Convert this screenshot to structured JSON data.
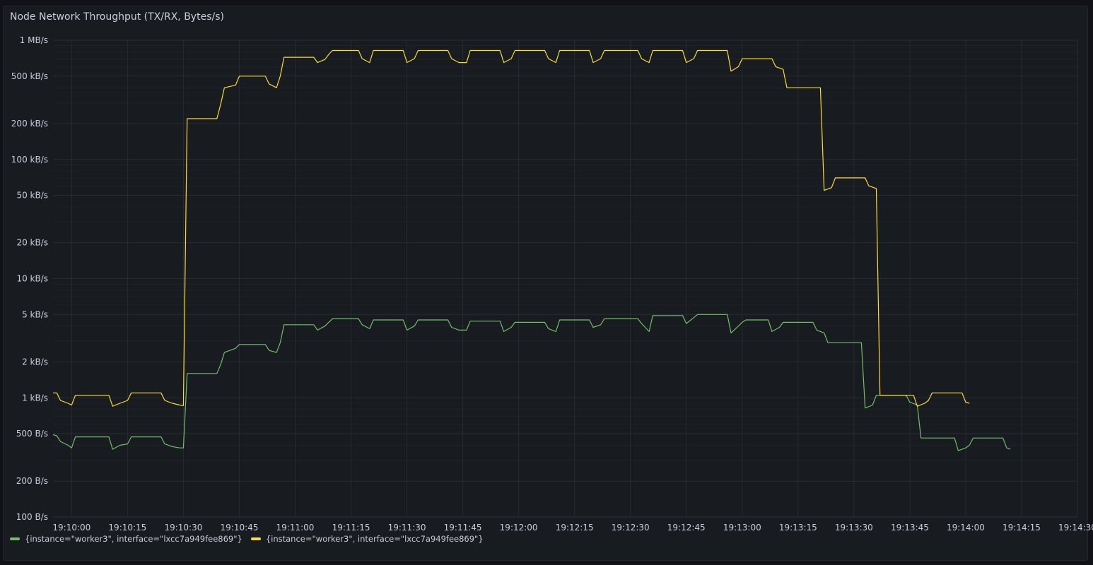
{
  "panel": {
    "title": "Node Network Throughput (TX/RX, Bytes/s)"
  },
  "colors": {
    "background": "#111217",
    "panel": "#181b1f",
    "grid": "#2c2f36",
    "text": "#ccccdc",
    "series_green": "#73bf69",
    "series_yellow": "#fade2a"
  },
  "chart_data": {
    "type": "line",
    "title": "Node Network Throughput (TX/RX, Bytes/s)",
    "xlabel": "",
    "ylabel": "",
    "y_scale": "log10",
    "ylim": [
      100,
      1000000
    ],
    "grid": true,
    "legend_position": "bottom-left",
    "y_ticks": [
      {
        "value": 100,
        "label": "100 B/s"
      },
      {
        "value": 200,
        "label": "200 B/s"
      },
      {
        "value": 500,
        "label": "500 B/s"
      },
      {
        "value": 1000,
        "label": "1 kB/s"
      },
      {
        "value": 2000,
        "label": "2 kB/s"
      },
      {
        "value": 5000,
        "label": "5 kB/s"
      },
      {
        "value": 10000,
        "label": "10 kB/s"
      },
      {
        "value": 20000,
        "label": "20 kB/s"
      },
      {
        "value": 50000,
        "label": "50 kB/s"
      },
      {
        "value": 100000,
        "label": "100 kB/s"
      },
      {
        "value": 200000,
        "label": "200 kB/s"
      },
      {
        "value": 500000,
        "label": "500 kB/s"
      },
      {
        "value": 1000000,
        "label": "1 MB/s"
      }
    ],
    "xlim": [
      "19:09:55",
      "19:14:30"
    ],
    "x_ticks": [
      "19:10:00",
      "19:10:15",
      "19:10:30",
      "19:10:45",
      "19:11:00",
      "19:11:15",
      "19:11:30",
      "19:11:45",
      "19:12:00",
      "19:12:15",
      "19:12:30",
      "19:12:45",
      "19:13:00",
      "19:13:15",
      "19:13:30",
      "19:13:45",
      "19:14:00",
      "19:14:15",
      "19:14:30"
    ],
    "series": [
      {
        "name": "{instance=\"worker3\", interface=\"lxcc7a949fee869\"}",
        "color": "#73bf69",
        "points": [
          [
            "19:09:55",
            490
          ],
          [
            "19:09:56",
            480
          ],
          [
            "19:09:57",
            430
          ],
          [
            "19:09:59",
            400
          ],
          [
            "19:10:00",
            380
          ],
          [
            "19:10:01",
            470
          ],
          [
            "19:10:10",
            470
          ],
          [
            "19:10:11",
            370
          ],
          [
            "19:10:13",
            400
          ],
          [
            "19:10:15",
            410
          ],
          [
            "19:10:16",
            470
          ],
          [
            "19:10:24",
            470
          ],
          [
            "19:10:25",
            410
          ],
          [
            "19:10:27",
            390
          ],
          [
            "19:10:29",
            380
          ],
          [
            "19:10:30",
            380
          ],
          [
            "19:10:31",
            1600
          ],
          [
            "19:10:39",
            1600
          ],
          [
            "19:10:40",
            1900
          ],
          [
            "19:10:41",
            2400
          ],
          [
            "19:10:44",
            2600
          ],
          [
            "19:10:45",
            2800
          ],
          [
            "19:10:52",
            2800
          ],
          [
            "19:10:53",
            2500
          ],
          [
            "19:10:55",
            2400
          ],
          [
            "19:10:56",
            2900
          ],
          [
            "19:10:57",
            4100
          ],
          [
            "19:11:05",
            4100
          ],
          [
            "19:11:06",
            3700
          ],
          [
            "19:11:08",
            4000
          ],
          [
            "19:11:09",
            4300
          ],
          [
            "19:11:10",
            4600
          ],
          [
            "19:11:17",
            4600
          ],
          [
            "19:11:18",
            4100
          ],
          [
            "19:11:20",
            3800
          ],
          [
            "19:11:21",
            4500
          ],
          [
            "19:11:29",
            4500
          ],
          [
            "19:11:30",
            3700
          ],
          [
            "19:11:32",
            4000
          ],
          [
            "19:11:33",
            4500
          ],
          [
            "19:11:41",
            4500
          ],
          [
            "19:11:42",
            3900
          ],
          [
            "19:11:44",
            3700
          ],
          [
            "19:11:46",
            3700
          ],
          [
            "19:11:47",
            4400
          ],
          [
            "19:11:55",
            4400
          ],
          [
            "19:11:56",
            3600
          ],
          [
            "19:11:58",
            3900
          ],
          [
            "19:11:59",
            4300
          ],
          [
            "19:12:07",
            4300
          ],
          [
            "19:12:08",
            3800
          ],
          [
            "19:12:10",
            3600
          ],
          [
            "19:12:11",
            4500
          ],
          [
            "19:12:19",
            4500
          ],
          [
            "19:12:20",
            3900
          ],
          [
            "19:12:22",
            4100
          ],
          [
            "19:12:23",
            4600
          ],
          [
            "19:12:32",
            4600
          ],
          [
            "19:12:33",
            4200
          ],
          [
            "19:12:35",
            3600
          ],
          [
            "19:12:36",
            4900
          ],
          [
            "19:12:44",
            4900
          ],
          [
            "19:12:45",
            4200
          ],
          [
            "19:12:47",
            4700
          ],
          [
            "19:12:48",
            5000
          ],
          [
            "19:12:56",
            5000
          ],
          [
            "19:12:57",
            3500
          ],
          [
            "19:12:59",
            4000
          ],
          [
            "19:13:00",
            4300
          ],
          [
            "19:13:01",
            4500
          ],
          [
            "19:13:07",
            4500
          ],
          [
            "19:13:08",
            3600
          ],
          [
            "19:13:10",
            3900
          ],
          [
            "19:13:11",
            4300
          ],
          [
            "19:13:19",
            4300
          ],
          [
            "19:13:20",
            3700
          ],
          [
            "19:13:22",
            3500
          ],
          [
            "19:13:23",
            2900
          ],
          [
            "19:13:32",
            2900
          ],
          [
            "19:13:33",
            820
          ],
          [
            "19:13:35",
            870
          ],
          [
            "19:13:36",
            1050
          ],
          [
            "19:13:44",
            1050
          ],
          [
            "19:13:45",
            920
          ],
          [
            "19:13:47",
            870
          ],
          [
            "19:13:48",
            460
          ],
          [
            "19:13:57",
            460
          ],
          [
            "19:13:58",
            360
          ],
          [
            "19:14:00",
            380
          ],
          [
            "19:14:01",
            400
          ],
          [
            "19:14:02",
            460
          ],
          [
            "19:14:10",
            460
          ],
          [
            "19:14:11",
            380
          ],
          [
            "19:14:12",
            370
          ]
        ]
      },
      {
        "name": "{instance=\"worker3\", interface=\"lxcc7a949fee869\"}",
        "color": "#fade2a",
        "points": [
          [
            "19:09:55",
            1100
          ],
          [
            "19:09:56",
            1100
          ],
          [
            "19:09:57",
            950
          ],
          [
            "19:09:59",
            900
          ],
          [
            "19:10:00",
            870
          ],
          [
            "19:10:01",
            1050
          ],
          [
            "19:10:10",
            1050
          ],
          [
            "19:10:11",
            850
          ],
          [
            "19:10:13",
            900
          ],
          [
            "19:10:15",
            950
          ],
          [
            "19:10:16",
            1100
          ],
          [
            "19:10:24",
            1100
          ],
          [
            "19:10:25",
            950
          ],
          [
            "19:10:27",
            900
          ],
          [
            "19:10:29",
            870
          ],
          [
            "19:10:30",
            860
          ],
          [
            "19:10:31",
            220000
          ],
          [
            "19:10:39",
            220000
          ],
          [
            "19:10:40",
            290000
          ],
          [
            "19:10:41",
            400000
          ],
          [
            "19:10:44",
            420000
          ],
          [
            "19:10:45",
            500000
          ],
          [
            "19:10:52",
            500000
          ],
          [
            "19:10:53",
            430000
          ],
          [
            "19:10:55",
            400000
          ],
          [
            "19:10:56",
            500000
          ],
          [
            "19:10:57",
            720000
          ],
          [
            "19:11:05",
            720000
          ],
          [
            "19:11:06",
            650000
          ],
          [
            "19:11:08",
            690000
          ],
          [
            "19:11:09",
            760000
          ],
          [
            "19:11:10",
            820000
          ],
          [
            "19:11:17",
            820000
          ],
          [
            "19:11:18",
            700000
          ],
          [
            "19:11:20",
            650000
          ],
          [
            "19:11:21",
            820000
          ],
          [
            "19:11:29",
            820000
          ],
          [
            "19:11:30",
            650000
          ],
          [
            "19:11:32",
            700000
          ],
          [
            "19:11:33",
            820000
          ],
          [
            "19:11:41",
            820000
          ],
          [
            "19:11:42",
            700000
          ],
          [
            "19:11:44",
            650000
          ],
          [
            "19:11:46",
            650000
          ],
          [
            "19:11:47",
            820000
          ],
          [
            "19:11:55",
            820000
          ],
          [
            "19:11:56",
            650000
          ],
          [
            "19:11:58",
            700000
          ],
          [
            "19:11:59",
            820000
          ],
          [
            "19:12:07",
            820000
          ],
          [
            "19:12:08",
            700000
          ],
          [
            "19:12:10",
            650000
          ],
          [
            "19:12:11",
            820000
          ],
          [
            "19:12:19",
            820000
          ],
          [
            "19:12:20",
            650000
          ],
          [
            "19:12:22",
            700000
          ],
          [
            "19:12:23",
            820000
          ],
          [
            "19:12:32",
            820000
          ],
          [
            "19:12:33",
            700000
          ],
          [
            "19:12:35",
            650000
          ],
          [
            "19:12:36",
            820000
          ],
          [
            "19:12:44",
            820000
          ],
          [
            "19:12:45",
            650000
          ],
          [
            "19:12:47",
            700000
          ],
          [
            "19:12:48",
            820000
          ],
          [
            "19:12:56",
            820000
          ],
          [
            "19:12:57",
            550000
          ],
          [
            "19:12:59",
            600000
          ],
          [
            "19:13:00",
            700000
          ],
          [
            "19:13:08",
            700000
          ],
          [
            "19:13:09",
            600000
          ],
          [
            "19:13:11",
            570000
          ],
          [
            "19:13:12",
            400000
          ],
          [
            "19:13:21",
            400000
          ],
          [
            "19:13:22",
            55000
          ],
          [
            "19:13:24",
            58000
          ],
          [
            "19:13:25",
            70000
          ],
          [
            "19:13:33",
            70000
          ],
          [
            "19:13:34",
            60000
          ],
          [
            "19:13:36",
            57000
          ],
          [
            "19:13:37",
            1050
          ],
          [
            "19:13:46",
            1050
          ],
          [
            "19:13:47",
            850
          ],
          [
            "19:13:49",
            900
          ],
          [
            "19:13:50",
            950
          ],
          [
            "19:13:51",
            1100
          ],
          [
            "19:13:59",
            1100
          ],
          [
            "19:14:00",
            920
          ],
          [
            "19:14:01",
            900
          ]
        ]
      }
    ]
  },
  "legend": [
    {
      "label": "{instance=\"worker3\", interface=\"lxcc7a949fee869\"}",
      "color": "#73bf69"
    },
    {
      "label": "{instance=\"worker3\", interface=\"lxcc7a949fee869\"}",
      "color": "#fade2a"
    }
  ]
}
